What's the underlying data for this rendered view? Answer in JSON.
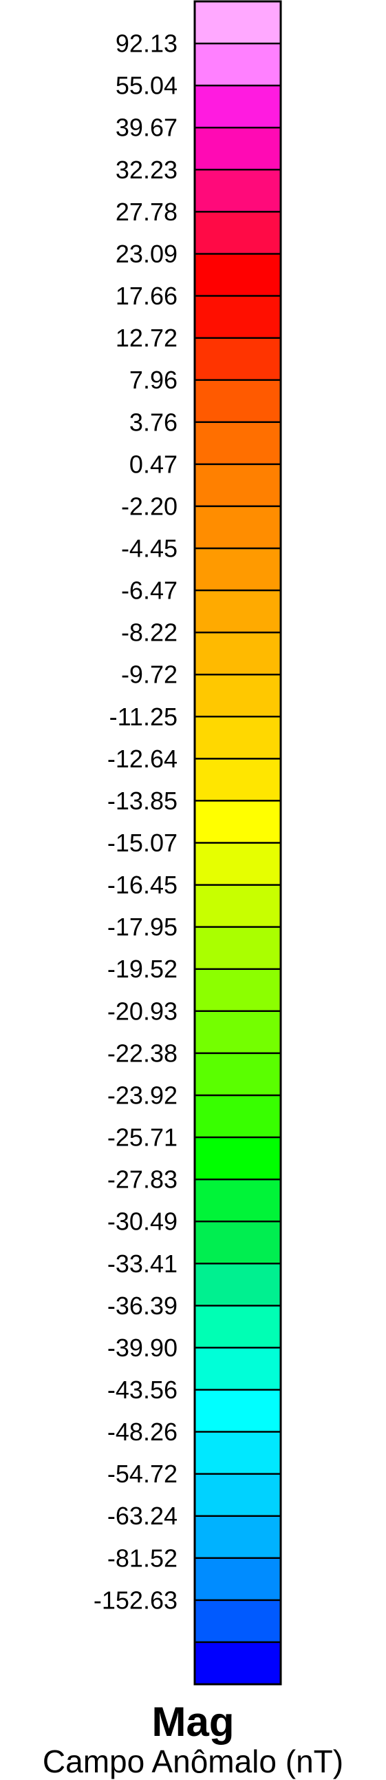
{
  "chart_data": {
    "type": "heatmap",
    "title": "Mag",
    "subtitle": "Campo Anômalo (nT)",
    "orientation": "vertical",
    "tick_labels": [
      "92.13",
      "55.04",
      "39.67",
      "32.23",
      "27.78",
      "23.09",
      "17.66",
      "12.72",
      "7.96",
      "3.76",
      "0.47",
      "-2.20",
      "-4.45",
      "-6.47",
      "-8.22",
      "-9.72",
      "-11.25",
      "-12.64",
      "-13.85",
      "-15.07",
      "-16.45",
      "-17.95",
      "-19.52",
      "-20.93",
      "-22.38",
      "-23.92",
      "-25.71",
      "-27.83",
      "-30.49",
      "-33.41",
      "-36.39",
      "-39.90",
      "-43.56",
      "-48.26",
      "-54.72",
      "-63.24",
      "-81.52",
      "-152.63"
    ],
    "colors": [
      "#ffa8ff",
      "#ff80ff",
      "#ff1be0",
      "#ff0ab4",
      "#ff0a7a",
      "#ff0a46",
      "#ff0000",
      "#ff0f00",
      "#ff3400",
      "#ff5a00",
      "#ff6f00",
      "#ff8000",
      "#ff8d00",
      "#ff9a00",
      "#ffaa00",
      "#ffba00",
      "#ffc800",
      "#ffd800",
      "#ffe600",
      "#ffff00",
      "#e6ff00",
      "#c8ff00",
      "#aaff00",
      "#8cff00",
      "#74ff00",
      "#5aff00",
      "#38ff00",
      "#00ff00",
      "#00f438",
      "#00ee50",
      "#00f090",
      "#00ffb4",
      "#00ffd8",
      "#00ffff",
      "#00e8ff",
      "#00d2ff",
      "#00b2ff",
      "#008cff",
      "#005aff",
      "#0000ff"
    ]
  }
}
